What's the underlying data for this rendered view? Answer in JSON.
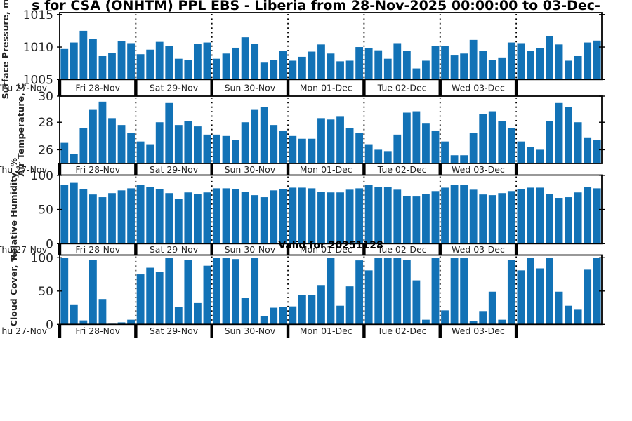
{
  "title": "s for CSA (ONHTM) PPL EBS  - Liberia from 28-Nov-2025 00:00:00 to 03-Dec-",
  "valid_for_label": "Valid for 20251128",
  "bar_color": "#1272b6",
  "tick_text_color": "#252525",
  "day_labels": [
    "Thu 27-Nov",
    "Fri 28-Nov",
    "Sat 29-Nov",
    "Sun 30-Nov",
    "Mon 01-Dec",
    "Tue 02-Dec",
    "Wed 03-Dec"
  ],
  "chart_data": [
    {
      "type": "bar",
      "ylabel": "Surface Pressure, mb",
      "yticks": [
        1005,
        1010,
        1015
      ],
      "ylim": [
        1005,
        1015.3
      ],
      "grid": "vertical-dotted-day-boundaries",
      "categories_note": "3-hourly steps, Fri 28-Nov 00:00 onward, 8 bars per day",
      "values": [
        1009.7,
        1010.7,
        1012.5,
        1011.3,
        1008.6,
        1009.1,
        1010.9,
        1010.6,
        1008.9,
        1009.6,
        1010.8,
        1010.2,
        1008.2,
        1008.0,
        1010.5,
        1010.7,
        1008.2,
        1009.0,
        1009.9,
        1011.5,
        1010.5,
        1007.6,
        1008.0,
        1009.4,
        1007.9,
        1008.5,
        1009.3,
        1010.4,
        1009.0,
        1007.8,
        1007.9,
        1010.0,
        1009.8,
        1009.5,
        1008.2,
        1010.6,
        1009.4,
        1006.7,
        1007.9,
        1010.2,
        1010.2,
        1008.7,
        1009.0,
        1011.1,
        1009.4,
        1008.0,
        1008.4,
        1010.7,
        1010.6,
        1009.4,
        1009.8,
        1011.7,
        1010.4,
        1007.9,
        1008.6,
        1010.7,
        1011.0
      ]
    },
    {
      "type": "bar",
      "ylabel": "Air Temperature, C",
      "yticks": [
        26,
        28,
        30
      ],
      "ylim": [
        25,
        29.9
      ],
      "values": [
        26.5,
        25.7,
        27.6,
        28.9,
        29.5,
        28.3,
        27.8,
        27.2,
        26.6,
        26.4,
        28.0,
        29.4,
        27.8,
        28.1,
        27.7,
        27.1,
        27.1,
        27.0,
        26.7,
        28.0,
        28.9,
        29.1,
        27.8,
        27.4,
        27.0,
        26.8,
        26.8,
        28.3,
        28.2,
        28.4,
        27.6,
        27.2,
        26.4,
        26.0,
        25.9,
        27.1,
        28.7,
        28.8,
        27.9,
        27.4,
        26.6,
        25.6,
        25.6,
        27.2,
        28.6,
        28.8,
        28.1,
        27.6,
        26.6,
        26.2,
        26.0,
        28.1,
        29.4,
        29.1,
        28.0,
        26.9,
        26.7
      ]
    },
    {
      "type": "bar",
      "ylabel": "Relative Humidity, %",
      "yticks": [
        0,
        50,
        100
      ],
      "ylim": [
        0,
        100.4
      ],
      "values": [
        86,
        89,
        80,
        72,
        68,
        74,
        78,
        81,
        86,
        83,
        80,
        74,
        66,
        75,
        73,
        75,
        81,
        81,
        80,
        76,
        71,
        68,
        78,
        80,
        82,
        82,
        81,
        76,
        75,
        75,
        79,
        81,
        86,
        83,
        83,
        79,
        70,
        69,
        73,
        77,
        82,
        86,
        86,
        79,
        72,
        71,
        74,
        77,
        80,
        82,
        82,
        73,
        67,
        68,
        75,
        83,
        81
      ]
    },
    {
      "type": "bar",
      "title": "Valid for 20251128",
      "ylabel": "Cloud Cover, %",
      "yticks": [
        0,
        50,
        100
      ],
      "ylim": [
        0,
        104
      ],
      "values": [
        100,
        30,
        6,
        97,
        38,
        1,
        3,
        7,
        75,
        85,
        79,
        100,
        26,
        97,
        32,
        88,
        100,
        100,
        98,
        40,
        100,
        12,
        25,
        26,
        27,
        44,
        44,
        59,
        100,
        28,
        57,
        96,
        81,
        100,
        100,
        100,
        97,
        66,
        7,
        100,
        21,
        100,
        100,
        5,
        20,
        49,
        7,
        97,
        81,
        100,
        84,
        100,
        49,
        28,
        22,
        82,
        100
      ]
    }
  ]
}
